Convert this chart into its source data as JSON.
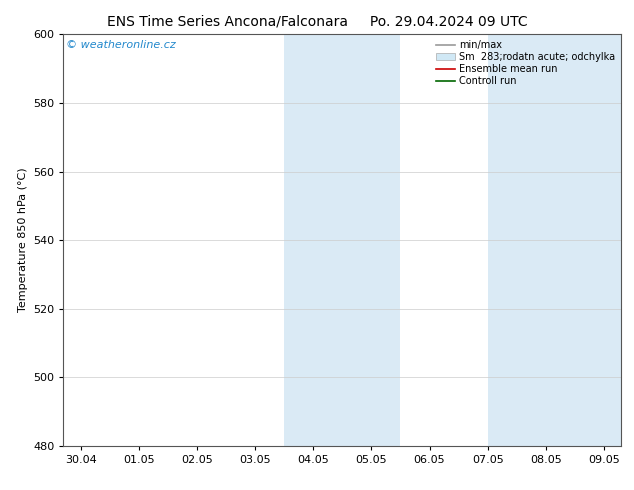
{
  "title_left": "ENS Time Series Ancona/Falconara",
  "title_right": "Po. 29.04.2024 09 UTC",
  "ylabel": "Temperature 850 hPa (°C)",
  "ylim": [
    480,
    600
  ],
  "yticks": [
    480,
    500,
    520,
    540,
    560,
    580,
    600
  ],
  "x_labels": [
    "30.04",
    "01.05",
    "02.05",
    "03.05",
    "04.05",
    "05.05",
    "06.05",
    "07.05",
    "08.05",
    "09.05"
  ],
  "x_positions": [
    0,
    1,
    2,
    3,
    4,
    5,
    6,
    7,
    8,
    9
  ],
  "x_lim": [
    -0.3,
    9.3
  ],
  "shaded_bands": [
    {
      "x_start": 3.5,
      "x_end": 5.5
    },
    {
      "x_start": 7.0,
      "x_end": 9.3
    }
  ],
  "shade_color": "#daeaf5",
  "watermark_text": "© weatheronline.cz",
  "watermark_color": "#2288cc",
  "legend_items": [
    {
      "label": "min/max",
      "color": "#999999",
      "lw": 1.2,
      "style": "line"
    },
    {
      "label": "Sm  283;rodatn acute; odchylka",
      "color": "#d0e8f5",
      "edge_color": "#aaaaaa",
      "style": "band"
    },
    {
      "label": "Ensemble mean run",
      "color": "#cc0000",
      "lw": 1.2,
      "style": "line"
    },
    {
      "label": "Controll run",
      "color": "#006600",
      "lw": 1.2,
      "style": "line"
    }
  ],
  "bg_color": "#ffffff",
  "plot_bg_color": "#ffffff",
  "spine_color": "#555555",
  "title_fontsize": 10,
  "tick_fontsize": 8,
  "ylabel_fontsize": 8,
  "watermark_fontsize": 8,
  "legend_fontsize": 7
}
